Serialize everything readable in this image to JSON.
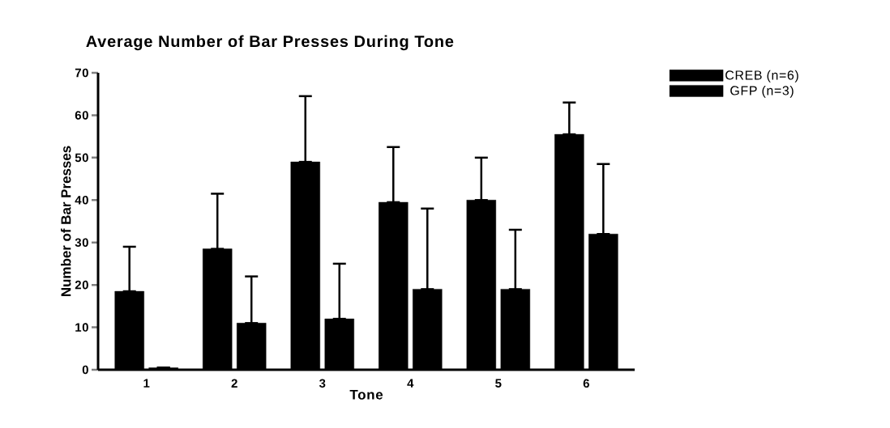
{
  "chart_data": {
    "type": "bar",
    "title": "Average Number of Bar Presses During Tone",
    "xlabel": "Tone",
    "ylabel": "Number of Bar Presses",
    "categories": [
      "1",
      "2",
      "3",
      "4",
      "5",
      "6"
    ],
    "series": [
      {
        "name": "CREB (n=6)",
        "color": "#000000",
        "values": [
          18.5,
          28.5,
          49,
          39.5,
          40,
          55.5
        ],
        "errors": [
          [
            18.5,
            29
          ],
          [
            28.5,
            41.5
          ],
          [
            49,
            64.5
          ],
          [
            39.5,
            52.5
          ],
          [
            40,
            50
          ],
          [
            55.5,
            63
          ]
        ]
      },
      {
        "name": "GFP (n=3)",
        "color": "#000000",
        "values": [
          0.5,
          11,
          12,
          19,
          19,
          32
        ],
        "errors": [
          null,
          [
            11,
            22
          ],
          [
            12,
            25
          ],
          [
            19,
            38
          ],
          [
            19,
            33
          ],
          [
            32,
            48.5
          ]
        ]
      }
    ],
    "ylim": [
      0,
      70
    ],
    "yticks": [
      0,
      10,
      20,
      30,
      40,
      50,
      60,
      70
    ],
    "grid": false,
    "legend": "top right"
  }
}
